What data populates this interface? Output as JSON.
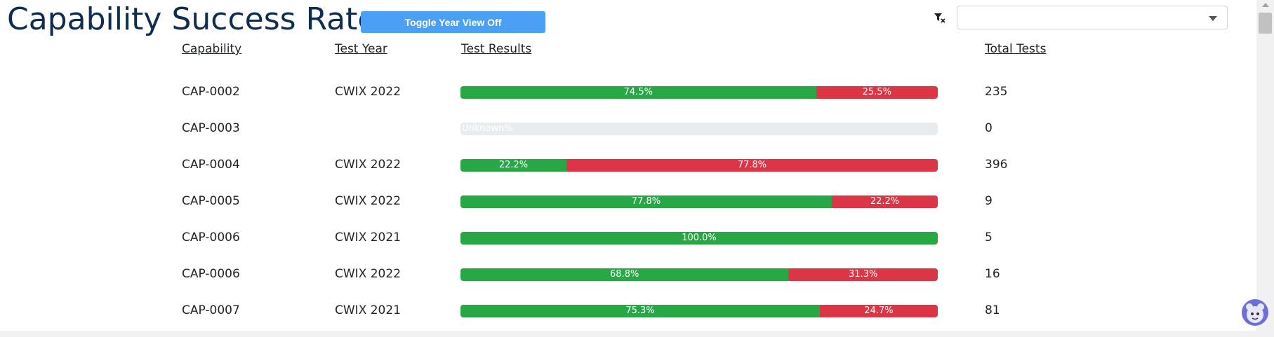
{
  "header": {
    "title": "Capability Success Rate",
    "toggle_label": "Toggle Year View Off",
    "filter_clear_icon": "filter-clear-icon",
    "dropdown_value": ""
  },
  "table": {
    "columns": {
      "capability": "Capability",
      "test_year": "Test Year",
      "test_results": "Test Results",
      "total_tests": "Total Tests"
    },
    "rows": [
      {
        "capability": "CAP-0002",
        "year": "CWIX 2022",
        "pass": 74.5,
        "fail": 25.5,
        "pass_label": "74.5%",
        "fail_label": "25.5%",
        "total": "235"
      },
      {
        "capability": "CAP-0003",
        "year": "",
        "pass": 0,
        "fail": 0,
        "unknown_label": "Unknown%",
        "total": "0"
      },
      {
        "capability": "CAP-0004",
        "year": "CWIX 2022",
        "pass": 22.2,
        "fail": 77.8,
        "pass_label": "22.2%",
        "fail_label": "77.8%",
        "total": "396"
      },
      {
        "capability": "CAP-0005",
        "year": "CWIX 2022",
        "pass": 77.8,
        "fail": 22.2,
        "pass_label": "77.8%",
        "fail_label": "22.2%",
        "total": "9"
      },
      {
        "capability": "CAP-0006",
        "year": "CWIX 2021",
        "pass": 100.0,
        "fail": 0,
        "pass_label": "100.0%",
        "fail_label": "",
        "total": "5"
      },
      {
        "capability": "CAP-0006",
        "year": "CWIX 2022",
        "pass": 68.8,
        "fail": 31.3,
        "pass_label": "68.8%",
        "fail_label": "31.3%",
        "total": "16"
      },
      {
        "capability": "CAP-0007",
        "year": "CWIX 2021",
        "pass": 75.3,
        "fail": 24.7,
        "pass_label": "75.3%",
        "fail_label": "24.7%",
        "total": "81"
      }
    ]
  },
  "colors": {
    "title": "#0f2d4f",
    "button": "#4aa0f5",
    "pass": "#28a745",
    "fail": "#dc3545",
    "unknown_track": "#e9ecef"
  }
}
